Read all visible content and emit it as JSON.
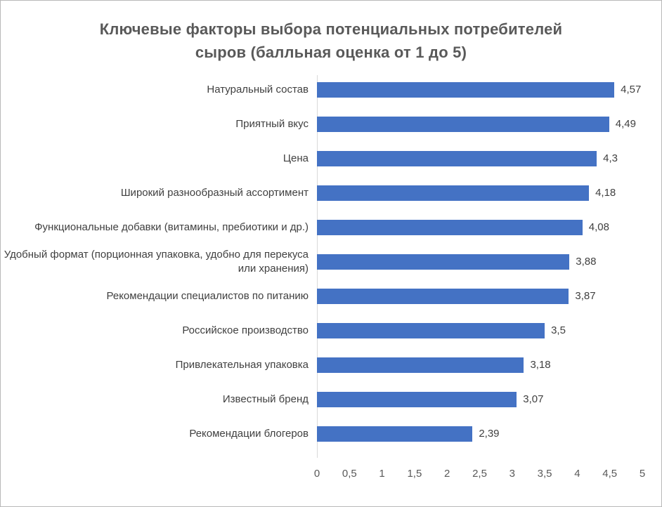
{
  "chart_data": {
    "type": "bar",
    "orientation": "horizontal",
    "title": "Ключевые факторы выбора потенциальных потребителей сыров (балльная оценка от 1 до 5)",
    "categories": [
      "Натуральный состав",
      "Приятный вкус",
      "Цена",
      "Широкий разнообразный ассортимент",
      "Функциональные добавки (витамины, пребиотики и др.)",
      "Удобный формат (порционная упаковка, удобно для перекуса или хранения)",
      "Рекомендации специалистов по питанию",
      "Российское производство",
      "Привлекательная упаковка",
      "Известный бренд",
      "Рекомендации блогеров"
    ],
    "values": [
      4.57,
      4.49,
      4.3,
      4.18,
      4.08,
      3.88,
      3.87,
      3.5,
      3.18,
      3.07,
      2.39
    ],
    "value_labels": [
      "4,57",
      "4,49",
      "4,3",
      "4,18",
      "4,08",
      "3,88",
      "3,87",
      "3,5",
      "3,18",
      "3,07",
      "2,39"
    ],
    "xlabel": "",
    "ylabel": "",
    "xlim": [
      0,
      5
    ],
    "x_tick_values": [
      0,
      0.5,
      1,
      1.5,
      2,
      2.5,
      3,
      3.5,
      4,
      4.5,
      5
    ],
    "x_tick_labels": [
      "0",
      "0,5",
      "1",
      "1,5",
      "2",
      "2,5",
      "3",
      "3,5",
      "4",
      "4,5",
      "5"
    ],
    "bar_color": "#4472C4",
    "grid": "off",
    "legend": "none"
  }
}
